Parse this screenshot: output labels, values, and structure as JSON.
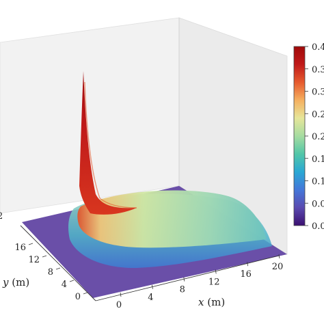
{
  "chart_data": {
    "type": "surface3d",
    "xlabel_var": "x",
    "xlabel_unit": " (m)",
    "ylabel_var": "y",
    "ylabel_unit": " (m)",
    "x_ticks": [
      "0",
      "4",
      "8",
      "12",
      "16",
      "20"
    ],
    "y_ticks": [
      "0",
      "4",
      "8",
      "12",
      "16"
    ],
    "y_tick_partial": "2",
    "xlim": [
      0,
      20
    ],
    "ylim": [
      0,
      20
    ],
    "zlim": [
      0,
      0.4
    ],
    "colorbar": {
      "range": [
        0,
        0.4
      ],
      "tick_labels": [
        "0.4",
        "0.3",
        "0.3",
        "0.2",
        "0.2",
        "0.1",
        "0.1",
        "0.0",
        "0.0"
      ],
      "colormap": [
        "#3b0f70",
        "#5a4ab0",
        "#4477d9",
        "#2aa8d4",
        "#52c7a8",
        "#a6dca1",
        "#e6e69a",
        "#f5b060",
        "#e65a2e",
        "#c01a1a",
        "#a00a0a"
      ]
    },
    "surface": {
      "source_point": {
        "x": 0,
        "y": 9,
        "z": 0.4
      },
      "plume_direction": "+x",
      "plume_peak_value": 0.18,
      "plume_extent_x": [
        0,
        20
      ],
      "background_value": 0.0
    },
    "grid": false,
    "legend": "colorbar-right"
  }
}
